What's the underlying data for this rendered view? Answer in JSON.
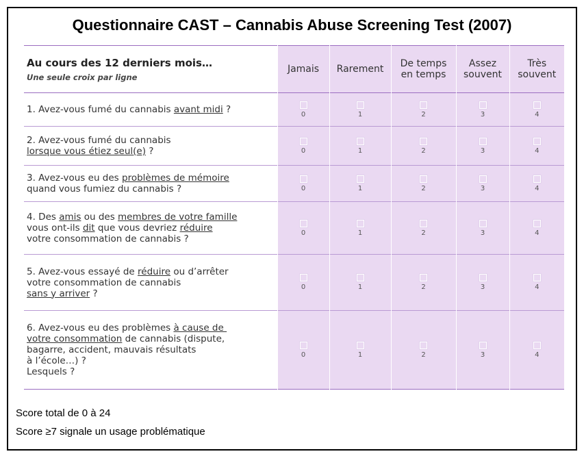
{
  "title": "Questionnaire CAST – Cannabis Abuse Screening Test (2007)",
  "header": {
    "title": "Au cours des 12 derniers mois…",
    "subtitle": "Une seule croix par ligne",
    "options": [
      {
        "line1": "Jamais",
        "line2": ""
      },
      {
        "line1": "Rarement",
        "line2": ""
      },
      {
        "line1": "De temps",
        "line2": "en temps"
      },
      {
        "line1": "Assez",
        "line2": "souvent"
      },
      {
        "line1": "Très",
        "line2": "souvent"
      }
    ]
  },
  "scores": [
    "0",
    "1",
    "2",
    "3",
    "4"
  ],
  "questions": [
    {
      "lines": [
        [
          {
            "t": "1. Avez-vous fumé du cannabis "
          },
          {
            "t": "avant midi",
            "u": true
          },
          {
            "t": " ?"
          }
        ]
      ]
    },
    {
      "lines": [
        [
          {
            "t": "2. Avez-vous fumé du cannabis"
          }
        ],
        [
          {
            "t": "lorsque vous étiez seul(e)",
            "u": true
          },
          {
            "t": " ?"
          }
        ]
      ]
    },
    {
      "lines": [
        [
          {
            "t": "3. Avez-vous eu des "
          },
          {
            "t": "problèmes de mémoire",
            "u": true
          }
        ],
        [
          {
            "t": "quand vous fumiez du cannabis ?"
          }
        ]
      ]
    },
    {
      "lines": [
        [
          {
            "t": "4. Des "
          },
          {
            "t": "amis",
            "u": true
          },
          {
            "t": " ou des "
          },
          {
            "t": "membres de votre famille",
            "u": true
          }
        ],
        [
          {
            "t": "vous ont-ils "
          },
          {
            "t": "dit",
            "u": true
          },
          {
            "t": " que vous devriez "
          },
          {
            "t": "réduire",
            "u": true
          }
        ],
        [
          {
            "t": "votre consommation de cannabis ?"
          }
        ]
      ]
    },
    {
      "lines": [
        [
          {
            "t": "5. Avez-vous essayé de "
          },
          {
            "t": "réduire",
            "u": true
          },
          {
            "t": " ou d’arrêter"
          }
        ],
        [
          {
            "t": "votre consommation de cannabis"
          }
        ],
        [
          {
            "t": "sans y arriver",
            "u": true
          },
          {
            "t": " ?"
          }
        ]
      ]
    },
    {
      "lines": [
        [
          {
            "t": "6. Avez-vous eu des problèmes "
          },
          {
            "t": "à cause de ",
            "u": true
          }
        ],
        [
          {
            "t": "votre consommation",
            "u": true
          },
          {
            "t": " de cannabis (dispute,"
          }
        ],
        [
          {
            "t": "bagarre, accident, mauvais résultats"
          }
        ],
        [
          {
            "t": "à l’école…) ?"
          }
        ],
        [
          {
            "t": "Lesquels ?"
          }
        ]
      ]
    }
  ],
  "footer": {
    "line1": "Score total de 0 à 24",
    "line2": "Score ≥7 signale un usage problématique"
  }
}
